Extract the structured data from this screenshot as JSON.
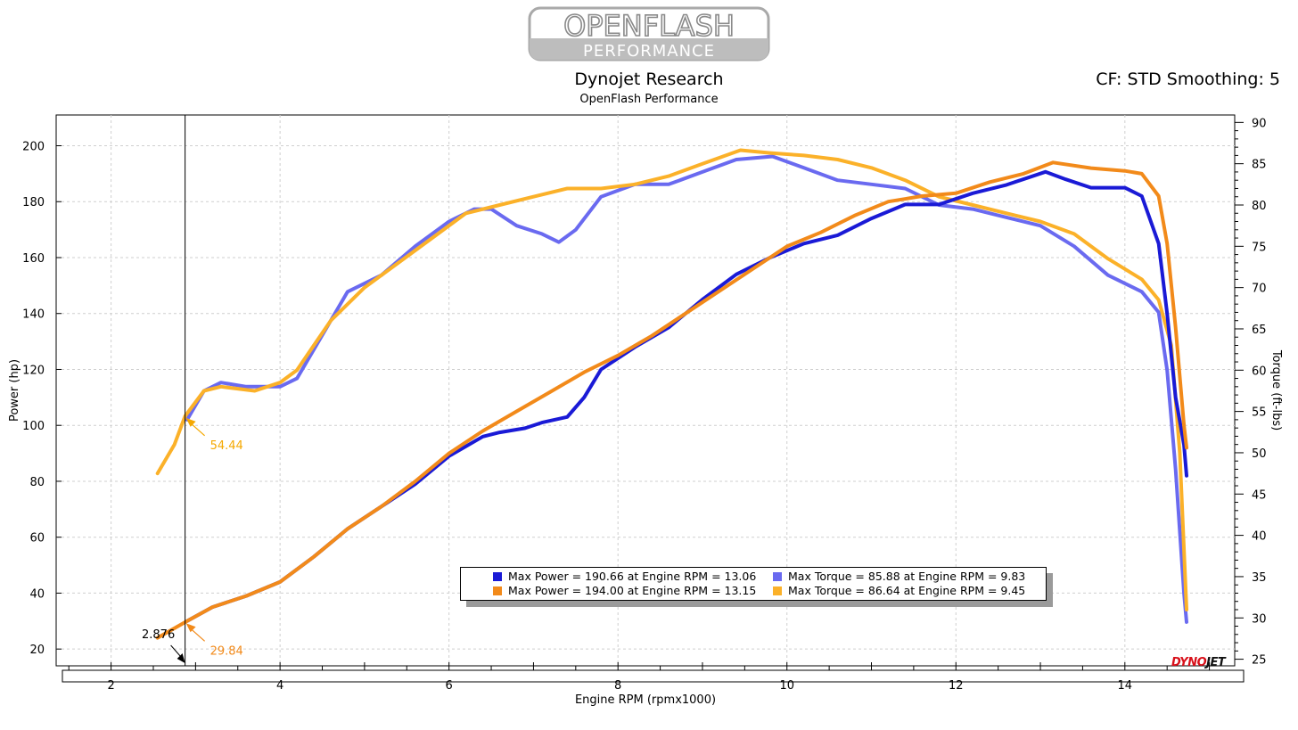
{
  "logo": {
    "line1": "OPENFLASH",
    "line2": "PERFORMANCE"
  },
  "header": {
    "title": "Dynojet Research",
    "subtitle": "OpenFlash Performance",
    "right_info": "CF: STD Smoothing: 5"
  },
  "brand": {
    "part1": "DYNO",
    "part2": "JET"
  },
  "legend": [
    {
      "text": "Max Power = 190.66 at Engine RPM = 13.06",
      "color": "#1a1ad6"
    },
    {
      "text": "Max Torque = 85.88 at Engine RPM = 9.83",
      "color": "#6a6af0"
    },
    {
      "text": "Max Power = 194.00 at Engine RPM = 13.15",
      "color": "#f28a1a"
    },
    {
      "text": "Max Torque = 86.64 at Engine RPM = 9.45",
      "color": "#fbb129"
    }
  ],
  "chart_data": {
    "type": "line",
    "xlabel": "Engine RPM (rpmx1000)",
    "ylabel": "Power (hp)",
    "y2label": "Torque (ft-lbs)",
    "xlim": [
      1.35,
      15.3
    ],
    "ylim": [
      14,
      211
    ],
    "y2lim": [
      24.2,
      90.9
    ],
    "x_ticks": [
      2,
      4,
      6,
      8,
      10,
      12,
      14
    ],
    "y_ticks": [
      20,
      40,
      60,
      80,
      100,
      120,
      140,
      160,
      180,
      200
    ],
    "y2_ticks": [
      25,
      30,
      35,
      40,
      45,
      50,
      55,
      60,
      65,
      70,
      75,
      80,
      85,
      90
    ],
    "grid": true,
    "cursor": {
      "x": 2.876,
      "label": "2.876"
    },
    "annotations": [
      {
        "x": 2.876,
        "y": 54.44,
        "axis": "right",
        "text": "54.44",
        "color": "#f5a800"
      },
      {
        "x": 2.876,
        "y": 29.84,
        "axis": "left",
        "text": "29.84",
        "color": "#f28a1a"
      }
    ],
    "series": [
      {
        "name": "Max Power = 190.66 at Engine RPM = 13.06",
        "color": "#1a1ad6",
        "axis": "left",
        "points": [
          [
            2.9,
            30
          ],
          [
            3.2,
            35
          ],
          [
            3.6,
            39
          ],
          [
            4.0,
            44
          ],
          [
            4.4,
            53
          ],
          [
            4.8,
            63
          ],
          [
            5.2,
            71
          ],
          [
            5.6,
            79
          ],
          [
            6.0,
            89
          ],
          [
            6.4,
            96
          ],
          [
            6.6,
            97.5
          ],
          [
            6.9,
            99
          ],
          [
            7.1,
            101
          ],
          [
            7.4,
            103
          ],
          [
            7.6,
            110
          ],
          [
            7.8,
            120
          ],
          [
            8.2,
            128
          ],
          [
            8.6,
            135
          ],
          [
            9.0,
            145
          ],
          [
            9.4,
            154
          ],
          [
            9.8,
            160
          ],
          [
            10.2,
            165
          ],
          [
            10.6,
            168
          ],
          [
            11.0,
            174
          ],
          [
            11.4,
            179
          ],
          [
            11.8,
            179
          ],
          [
            12.2,
            183
          ],
          [
            12.6,
            186
          ],
          [
            13.06,
            190.66
          ],
          [
            13.3,
            188
          ],
          [
            13.6,
            185
          ],
          [
            14.0,
            185
          ],
          [
            14.2,
            182
          ],
          [
            14.4,
            165
          ],
          [
            14.5,
            140
          ],
          [
            14.6,
            110
          ],
          [
            14.7,
            93
          ],
          [
            14.73,
            82
          ]
        ]
      },
      {
        "name": "Max Torque = 85.88 at Engine RPM = 9.83",
        "color": "#6a6af0",
        "axis": "right",
        "points": [
          [
            2.9,
            54
          ],
          [
            3.1,
            57.5
          ],
          [
            3.3,
            58.5
          ],
          [
            3.6,
            58
          ],
          [
            4.0,
            58
          ],
          [
            4.2,
            59
          ],
          [
            4.6,
            66
          ],
          [
            4.8,
            69.5
          ],
          [
            5.2,
            71.5
          ],
          [
            5.6,
            75
          ],
          [
            6.0,
            78
          ],
          [
            6.3,
            79.5
          ],
          [
            6.5,
            79.5
          ],
          [
            6.8,
            77.5
          ],
          [
            7.1,
            76.5
          ],
          [
            7.3,
            75.5
          ],
          [
            7.5,
            77
          ],
          [
            7.8,
            81
          ],
          [
            8.2,
            82.5
          ],
          [
            8.6,
            82.5
          ],
          [
            9.0,
            84
          ],
          [
            9.4,
            85.5
          ],
          [
            9.83,
            85.88
          ],
          [
            10.2,
            84.5
          ],
          [
            10.6,
            83
          ],
          [
            11.0,
            82.5
          ],
          [
            11.4,
            82
          ],
          [
            11.8,
            80
          ],
          [
            12.2,
            79.5
          ],
          [
            12.6,
            78.5
          ],
          [
            13.0,
            77.5
          ],
          [
            13.4,
            75
          ],
          [
            13.8,
            71.5
          ],
          [
            14.2,
            69.5
          ],
          [
            14.4,
            67
          ],
          [
            14.5,
            60
          ],
          [
            14.6,
            48
          ],
          [
            14.7,
            33
          ],
          [
            14.73,
            29.5
          ]
        ]
      },
      {
        "name": "Max Power = 194.00 at Engine RPM = 13.15",
        "color": "#f28a1a",
        "axis": "left",
        "points": [
          [
            2.55,
            24
          ],
          [
            2.9,
            30
          ],
          [
            3.2,
            35
          ],
          [
            3.6,
            39
          ],
          [
            4.0,
            44
          ],
          [
            4.4,
            53
          ],
          [
            4.8,
            63
          ],
          [
            5.2,
            71
          ],
          [
            5.6,
            80
          ],
          [
            6.0,
            90
          ],
          [
            6.4,
            98
          ],
          [
            6.8,
            105
          ],
          [
            7.2,
            112
          ],
          [
            7.6,
            119
          ],
          [
            8.0,
            125
          ],
          [
            8.4,
            132
          ],
          [
            8.8,
            140
          ],
          [
            9.2,
            148
          ],
          [
            9.6,
            156
          ],
          [
            10.0,
            164
          ],
          [
            10.4,
            169
          ],
          [
            10.8,
            175
          ],
          [
            11.2,
            180
          ],
          [
            11.6,
            182
          ],
          [
            12.0,
            183
          ],
          [
            12.4,
            187
          ],
          [
            12.8,
            190
          ],
          [
            13.15,
            194
          ],
          [
            13.6,
            192
          ],
          [
            14.0,
            191
          ],
          [
            14.2,
            190
          ],
          [
            14.4,
            182
          ],
          [
            14.5,
            165
          ],
          [
            14.6,
            135
          ],
          [
            14.7,
            100
          ],
          [
            14.73,
            92
          ]
        ]
      },
      {
        "name": "Max Torque = 86.64 at Engine RPM = 9.45",
        "color": "#fbb129",
        "axis": "right",
        "points": [
          [
            2.55,
            47.5
          ],
          [
            2.75,
            51
          ],
          [
            2.876,
            54.44
          ],
          [
            3.1,
            57.5
          ],
          [
            3.3,
            58
          ],
          [
            3.7,
            57.5
          ],
          [
            4.0,
            58.5
          ],
          [
            4.2,
            60
          ],
          [
            4.4,
            63
          ],
          [
            4.6,
            66
          ],
          [
            5.0,
            70
          ],
          [
            5.4,
            73
          ],
          [
            5.8,
            76
          ],
          [
            6.2,
            79
          ],
          [
            6.6,
            80
          ],
          [
            7.0,
            81
          ],
          [
            7.4,
            82
          ],
          [
            7.8,
            82
          ],
          [
            8.2,
            82.5
          ],
          [
            8.6,
            83.5
          ],
          [
            9.0,
            85
          ],
          [
            9.45,
            86.64
          ],
          [
            9.8,
            86.3
          ],
          [
            10.2,
            86
          ],
          [
            10.6,
            85.5
          ],
          [
            11.0,
            84.5
          ],
          [
            11.4,
            83
          ],
          [
            11.8,
            81
          ],
          [
            12.2,
            80
          ],
          [
            12.6,
            79
          ],
          [
            13.0,
            78
          ],
          [
            13.4,
            76.5
          ],
          [
            13.8,
            73.5
          ],
          [
            14.2,
            71
          ],
          [
            14.4,
            68.5
          ],
          [
            14.55,
            63
          ],
          [
            14.65,
            50
          ],
          [
            14.73,
            31
          ]
        ]
      }
    ]
  }
}
